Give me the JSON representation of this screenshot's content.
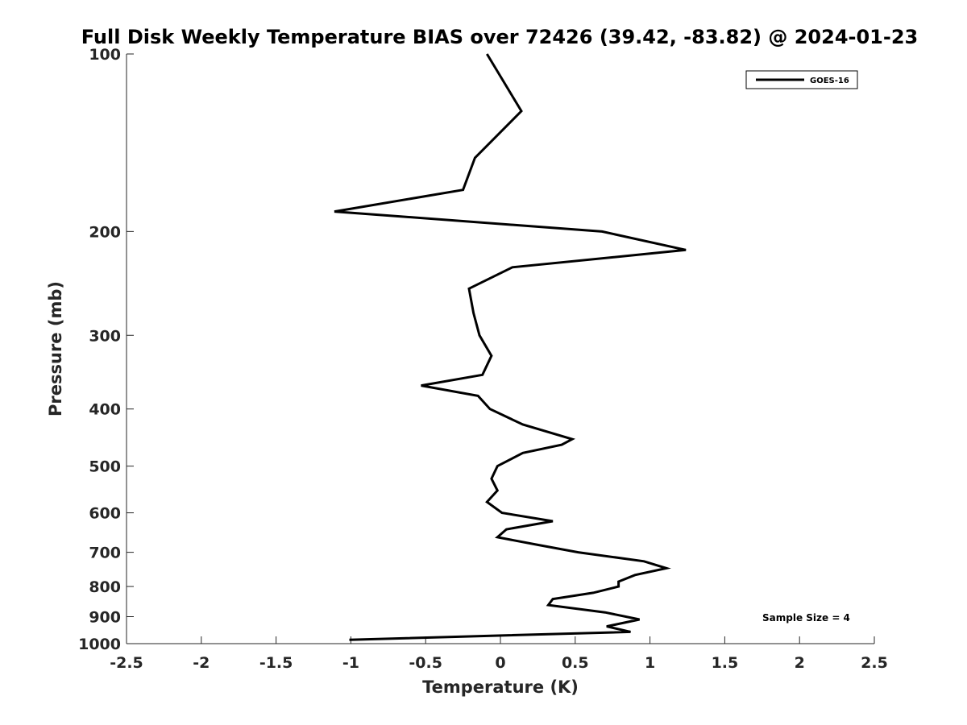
{
  "chart_data": {
    "type": "line",
    "title": "Full Disk Weekly Temperature BIAS over 72426 (39.42, -83.82) @ 2024-01-23",
    "xlabel": "Temperature (K)",
    "ylabel": "Pressure (mb)",
    "xlim": [
      -2.5,
      2.5
    ],
    "ylim": [
      1000,
      100
    ],
    "y_scale": "log",
    "y_reversed": true,
    "x_ticks": [
      "-2.5",
      "-2",
      "-1.5",
      "-1",
      "-0.5",
      "0",
      "0.5",
      "1",
      "1.5",
      "2",
      "2.5"
    ],
    "y_ticks": [
      "100",
      "200",
      "300",
      "400",
      "500",
      "600",
      "700",
      "800",
      "900",
      "1000"
    ],
    "grid": false,
    "legend": {
      "position": "top-right",
      "entries": [
        "GOES-16"
      ]
    },
    "annotation": "Sample Size = 4",
    "series": [
      {
        "name": "GOES-16",
        "color": "#000000",
        "points": [
          [
            -0.09,
            100
          ],
          [
            0.14,
            125
          ],
          [
            -0.17,
            150
          ],
          [
            -0.25,
            170
          ],
          [
            -1.11,
            185
          ],
          [
            0.68,
            200
          ],
          [
            1.24,
            215
          ],
          [
            0.08,
            230
          ],
          [
            -0.21,
            250
          ],
          [
            -0.18,
            275
          ],
          [
            -0.14,
            300
          ],
          [
            -0.06,
            325
          ],
          [
            -0.12,
            350
          ],
          [
            -0.53,
            365
          ],
          [
            -0.15,
            380
          ],
          [
            -0.07,
            400
          ],
          [
            0.15,
            425
          ],
          [
            0.48,
            450
          ],
          [
            0.41,
            460
          ],
          [
            0.15,
            475
          ],
          [
            -0.02,
            500
          ],
          [
            -0.06,
            525
          ],
          [
            -0.02,
            550
          ],
          [
            -0.09,
            575
          ],
          [
            0.01,
            600
          ],
          [
            0.35,
            620
          ],
          [
            0.04,
            640
          ],
          [
            -0.02,
            660
          ],
          [
            0.25,
            680
          ],
          [
            0.52,
            700
          ],
          [
            0.96,
            725
          ],
          [
            1.11,
            745
          ],
          [
            0.9,
            765
          ],
          [
            0.79,
            785
          ],
          [
            0.79,
            800
          ],
          [
            0.62,
            820
          ],
          [
            0.35,
            840
          ],
          [
            0.32,
            860
          ],
          [
            0.7,
            885
          ],
          [
            0.93,
            910
          ],
          [
            0.71,
            935
          ],
          [
            0.87,
            955
          ],
          [
            -1.01,
            985
          ]
        ]
      }
    ]
  }
}
